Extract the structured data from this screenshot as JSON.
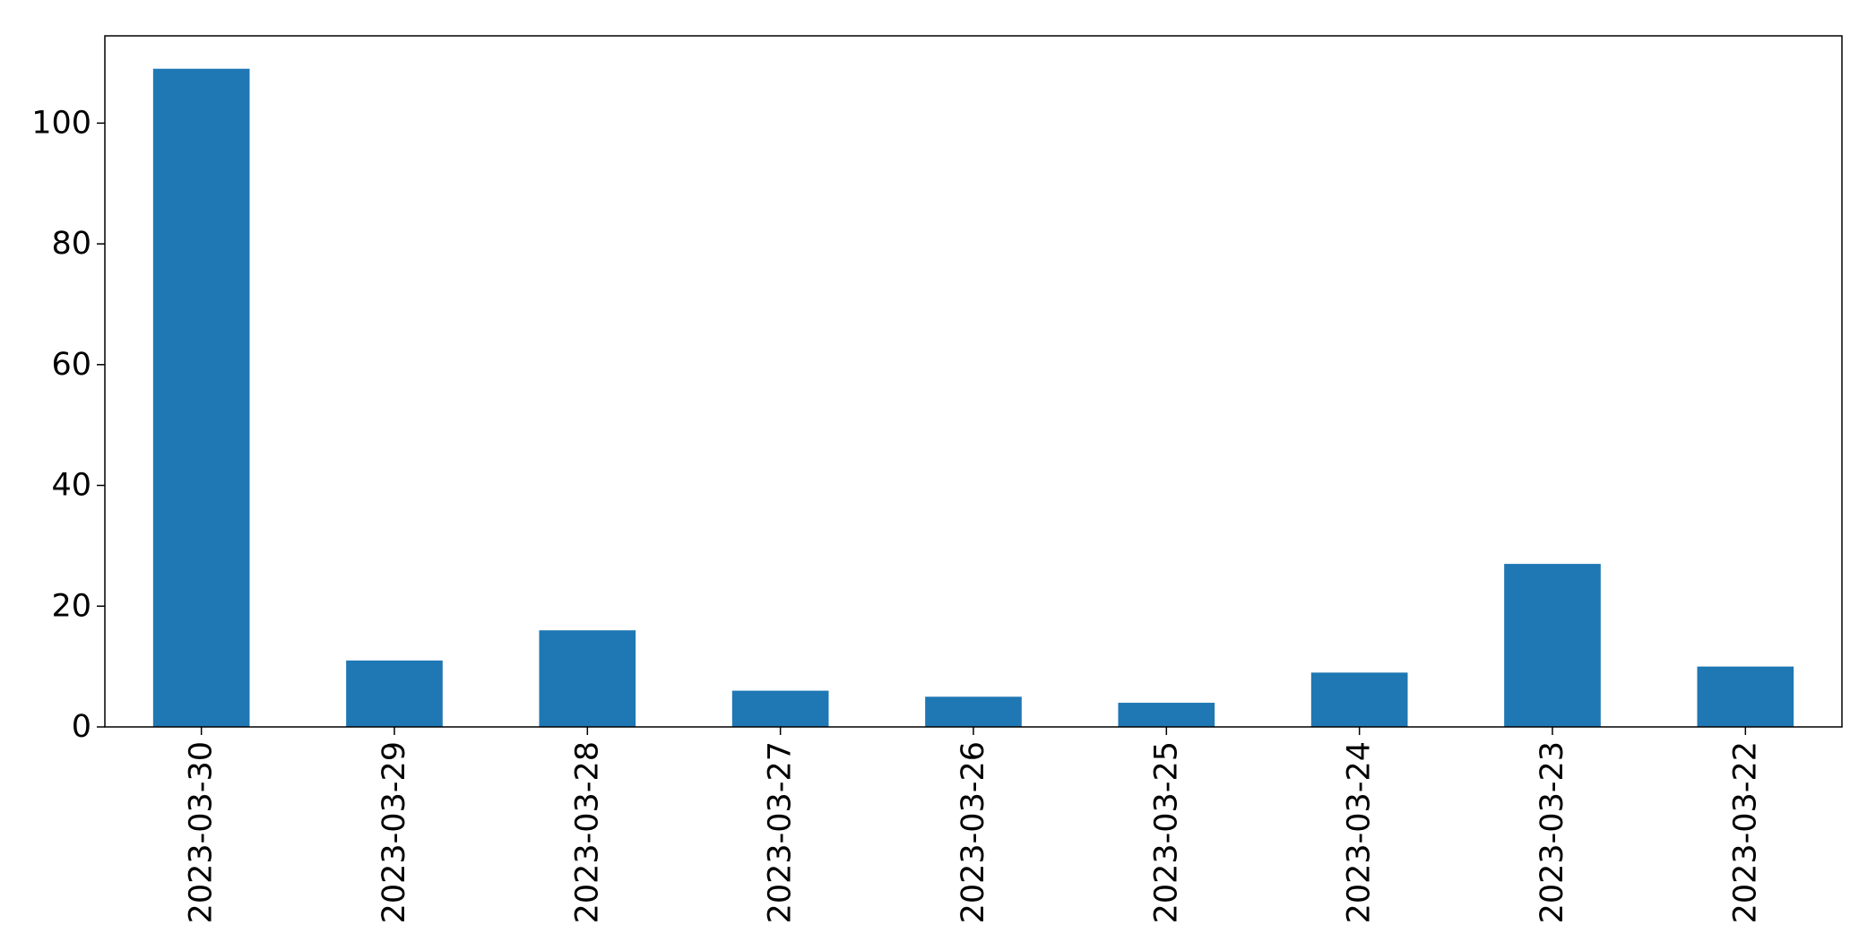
{
  "chart_data": {
    "type": "bar",
    "title": "",
    "xlabel": "",
    "ylabel": "",
    "categories": [
      "2023-03-30",
      "2023-03-29",
      "2023-03-28",
      "2023-03-27",
      "2023-03-26",
      "2023-03-25",
      "2023-03-24",
      "2023-03-23",
      "2023-03-22"
    ],
    "values": [
      109,
      11,
      16,
      6,
      5,
      4,
      9,
      27,
      10
    ],
    "ylim": [
      0,
      114.45
    ],
    "yticks": [
      0,
      20,
      40,
      60,
      80,
      100
    ],
    "ytick_labels": [
      "0",
      "20",
      "40",
      "60",
      "80",
      "100"
    ],
    "bar_color": "#1f77b4",
    "grid": false,
    "legend": "none"
  }
}
